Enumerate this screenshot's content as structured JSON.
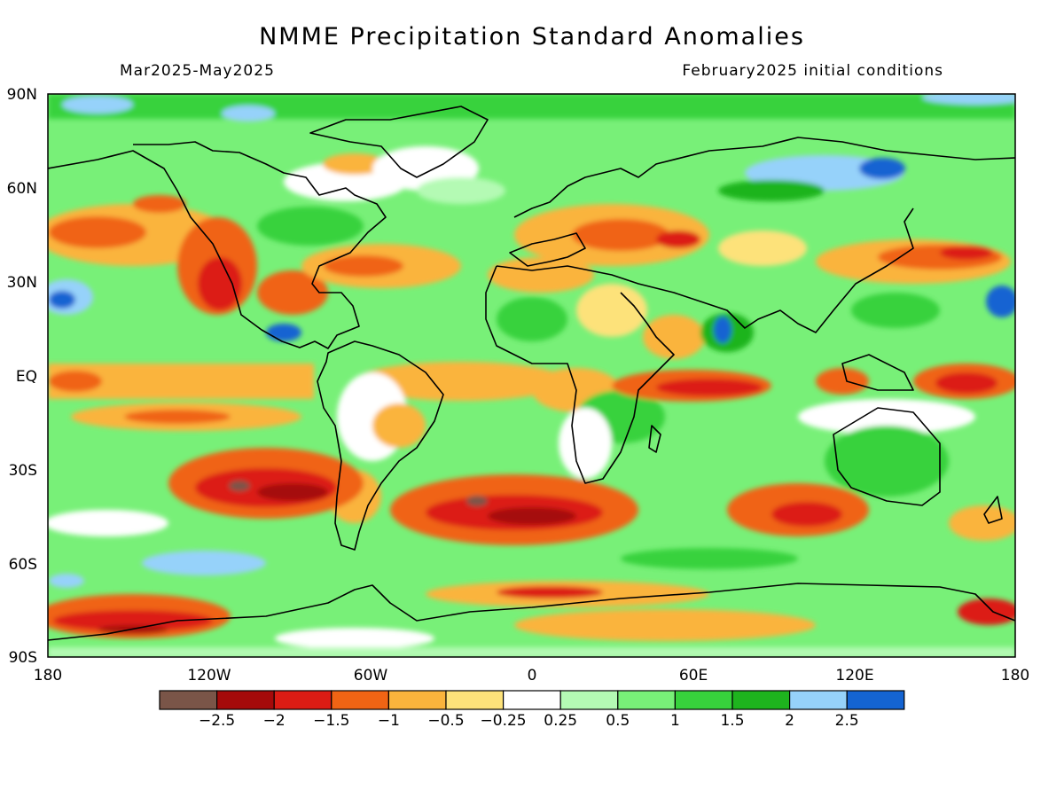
{
  "title": "NMME Precipitation Standard Anomalies",
  "period": "Mar2025-May2025",
  "init": "February2025 initial conditions",
  "lat_labels": [
    "90N",
    "60N",
    "30N",
    "EQ",
    "30S",
    "60S",
    "90S"
  ],
  "lon_labels": [
    "180",
    "120W",
    "60W",
    "0",
    "60E",
    "120E",
    "180"
  ],
  "colorbar": {
    "labels": [
      "-2.5",
      "-2",
      "-1.5",
      "-1",
      "-0.5",
      "-0.25",
      "0.25",
      "0.5",
      "1",
      "1.5",
      "2",
      "2.5"
    ],
    "colors": [
      "#7a5548",
      "#a50a0a",
      "#dc1c14",
      "#f06414",
      "#fab43c",
      "#fde27a",
      "#ffffff",
      "#b4fab4",
      "#78f078",
      "#37d23c",
      "#1eb41e",
      "#96d2fa",
      "#1464d2"
    ]
  }
}
